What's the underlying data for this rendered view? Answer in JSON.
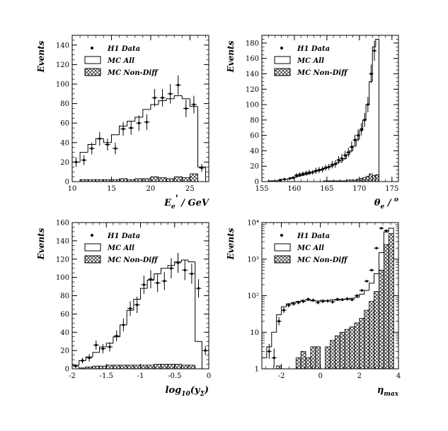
{
  "legend": {
    "data": "H1 Data",
    "mc_all": "MC All",
    "mc_nondiff": "MC Non-Diff"
  },
  "chart_data": [
    {
      "type": "bar",
      "ylabel": "Events",
      "xlabel": "E_e' / GeV",
      "xlim": [
        10,
        27.4
      ],
      "ylim": [
        0,
        150
      ],
      "xticks": [
        10,
        15,
        20,
        25
      ],
      "yticks": [
        0,
        20,
        40,
        60,
        80,
        100,
        120,
        140
      ],
      "bin_edges": [
        10,
        11,
        12,
        13,
        14,
        15,
        16,
        17,
        18,
        19,
        20,
        21,
        22,
        23,
        24,
        25,
        26,
        27
      ],
      "series": [
        {
          "name": "MC All",
          "values": [
            20,
            30,
            38,
            44,
            40,
            48,
            57,
            62,
            66,
            74,
            79,
            83,
            85,
            88,
            85,
            77,
            15
          ]
        },
        {
          "name": "MC Non-Diff",
          "values": [
            0,
            2,
            2,
            2,
            2,
            2,
            3,
            2,
            3,
            3,
            5,
            4,
            3,
            5,
            4,
            8,
            0
          ]
        },
        {
          "name": "H1 Data",
          "x": [
            10.5,
            11.5,
            12.5,
            13.5,
            14.5,
            15.5,
            16.5,
            17.5,
            18.5,
            19.5,
            20.5,
            21.5,
            22.5,
            23.5,
            24.5,
            25.5,
            26.5
          ],
          "y": [
            20,
            22,
            34,
            44,
            38,
            34,
            54,
            55,
            60,
            61,
            86,
            86,
            90,
            99,
            75,
            79,
            14
          ],
          "err": [
            5,
            5,
            6,
            7,
            6,
            6,
            7,
            7,
            8,
            8,
            9,
            9,
            10,
            10,
            9,
            9,
            4
          ]
        }
      ]
    },
    {
      "type": "bar",
      "ylabel": "Events",
      "xlabel": "θ_e / o",
      "xlim": [
        155,
        176
      ],
      "ylim": [
        0,
        190
      ],
      "xticks": [
        155,
        160,
        165,
        170,
        175
      ],
      "yticks": [
        0,
        20,
        40,
        60,
        80,
        100,
        120,
        140,
        160,
        180
      ],
      "bin_edges": [
        155,
        155.5,
        156,
        156.5,
        157,
        157.5,
        158,
        158.5,
        159,
        159.5,
        160,
        160.5,
        161,
        161.5,
        162,
        162.5,
        163,
        163.5,
        164,
        164.5,
        165,
        165.5,
        166,
        166.5,
        167,
        167.5,
        168,
        168.5,
        169,
        169.5,
        170,
        170.5,
        171,
        171.5,
        172,
        172.5,
        173
      ],
      "series": [
        {
          "name": "MC All",
          "values": [
            0,
            0,
            1,
            1,
            1,
            2,
            3,
            3,
            4,
            5,
            6,
            7,
            8,
            9,
            10,
            12,
            13,
            14,
            15,
            17,
            19,
            20,
            22,
            25,
            27,
            30,
            35,
            40,
            46,
            55,
            66,
            80,
            100,
            130,
            175,
            185
          ]
        },
        {
          "name": "MC Non-Diff",
          "values": [
            0,
            0,
            0,
            0,
            0,
            0,
            0,
            0,
            0,
            0,
            0,
            0,
            0,
            0,
            0,
            0,
            0,
            0,
            0,
            1,
            1,
            1,
            1,
            1,
            1,
            1,
            2,
            2,
            2,
            3,
            4,
            5,
            7,
            10,
            8,
            9
          ]
        },
        {
          "name": "H1 Data",
          "x": [
            157.8,
            158.5,
            159.3,
            159.8,
            160.3,
            160.8,
            161.3,
            161.8,
            162.3,
            162.8,
            163.3,
            163.8,
            164.3,
            164.8,
            165.3,
            165.8,
            166.3,
            166.8,
            167.3,
            167.8,
            168.3,
            168.8,
            169.3,
            169.8,
            170.3,
            170.8,
            171.3,
            171.8,
            172.3
          ],
          "y": [
            2,
            3,
            4,
            5,
            8,
            9,
            10,
            11,
            12,
            12,
            14,
            15,
            16,
            18,
            19,
            22,
            23,
            28,
            30,
            34,
            38,
            45,
            54,
            60,
            68,
            80,
            100,
            140,
            170
          ],
          "err": [
            1.5,
            2,
            2,
            2,
            3,
            3,
            3,
            3,
            3,
            3,
            4,
            4,
            4,
            4,
            4,
            5,
            5,
            5,
            6,
            6,
            6,
            7,
            7,
            8,
            8,
            9,
            10,
            12,
            13
          ]
        }
      ]
    },
    {
      "type": "bar",
      "ylabel": "Events",
      "xlabel": "log10(y_Σ)",
      "xlim": [
        -2,
        0
      ],
      "ylim": [
        0,
        160
      ],
      "xticks": [
        -2,
        -1.5,
        -1,
        -0.5,
        0
      ],
      "xtick_labels": [
        "-2",
        "-1.5",
        "-1",
        "-0.5",
        "0"
      ],
      "yticks": [
        0,
        20,
        40,
        60,
        80,
        100,
        120,
        140,
        160
      ],
      "bin_edges": [
        -2,
        -1.9,
        -1.8,
        -1.7,
        -1.6,
        -1.5,
        -1.4,
        -1.3,
        -1.2,
        -1.1,
        -1,
        -0.9,
        -0.8,
        -0.7,
        -0.6,
        -0.5,
        -0.4,
        -0.3,
        -0.2,
        -0.1
      ],
      "series": [
        {
          "name": "MC All",
          "values": [
            4,
            9,
            13,
            18,
            24,
            28,
            35,
            48,
            64,
            76,
            88,
            97,
            104,
            110,
            113,
            117,
            119,
            117,
            30
          ]
        },
        {
          "name": "MC Non-Diff",
          "values": [
            0,
            1,
            2,
            3,
            3,
            4,
            4,
            4,
            4,
            4,
            4,
            4,
            5,
            5,
            5,
            5,
            4,
            4,
            0
          ]
        },
        {
          "name": "H1 Data",
          "x": [
            -1.95,
            -1.85,
            -1.75,
            -1.65,
            -1.55,
            -1.45,
            -1.35,
            -1.25,
            -1.15,
            -1.05,
            -0.95,
            -0.85,
            -0.75,
            -0.65,
            -0.55,
            -0.45,
            -0.35,
            -0.25,
            -0.15,
            -0.05
          ],
          "y": [
            3,
            9,
            12,
            26,
            22,
            24,
            36,
            48,
            66,
            70,
            92,
            98,
            94,
            96,
            110,
            116,
            108,
            104,
            88,
            20
          ],
          "err": [
            2,
            3,
            4,
            5,
            5,
            5,
            6,
            7,
            8,
            9,
            10,
            10,
            10,
            10,
            11,
            11,
            11,
            11,
            10,
            5
          ]
        }
      ]
    },
    {
      "type": "bar",
      "ylabel": "Events",
      "xlabel": "η_max",
      "xscale": "linear",
      "yscale": "log",
      "xlim": [
        -3,
        4
      ],
      "ylim": [
        1,
        10000
      ],
      "xticks": [
        -2,
        0,
        2,
        4
      ],
      "yticks": [
        1,
        10,
        100,
        1000,
        10000
      ],
      "ytick_labels": [
        "1",
        "10",
        "10²",
        "10³",
        "10⁴"
      ],
      "bin_edges": [
        -3,
        -2.75,
        -2.5,
        -2.25,
        -2,
        -1.75,
        -1.5,
        -1.25,
        -1,
        -0.75,
        -0.5,
        -0.25,
        0,
        0.25,
        0.5,
        0.75,
        1,
        1.25,
        1.5,
        1.75,
        2,
        2.25,
        2.5,
        2.75,
        3,
        3.25,
        3.5,
        3.75
      ],
      "series": [
        {
          "name": "MC All",
          "values": [
            2,
            4,
            10,
            30,
            50,
            60,
            65,
            70,
            75,
            75,
            72,
            72,
            75,
            72,
            78,
            75,
            80,
            80,
            85,
            90,
            110,
            140,
            220,
            400,
            1500,
            5500,
            7000
          ]
        },
        {
          "name": "MC Non-Diff",
          "values": [
            0,
            0,
            0,
            1.2,
            0,
            0,
            0,
            2,
            3,
            2,
            4,
            4,
            1,
            4,
            6,
            8,
            10,
            12,
            14,
            18,
            24,
            40,
            70,
            130,
            500,
            2500,
            5000
          ]
        },
        {
          "name": "H1 Data",
          "x": [
            -2.625,
            -2.375,
            -2.125,
            -1.875,
            -1.625,
            -1.375,
            -1.125,
            -0.875,
            -0.625,
            -0.375,
            -0.125,
            0.125,
            0.375,
            0.625,
            0.875,
            1.125,
            1.375,
            1.625,
            1.875,
            2.125,
            2.375,
            2.625,
            2.875,
            3.125,
            3.375
          ],
          "y": [
            3,
            2,
            20,
            40,
            55,
            60,
            65,
            70,
            80,
            75,
            65,
            70,
            72,
            68,
            80,
            78,
            82,
            78,
            100,
            140,
            250,
            500,
            2000,
            7000,
            6000
          ],
          "err_factor": [
            1.6,
            1.8,
            1.3,
            1.2,
            1.15,
            1.13,
            1.12,
            1.12,
            1.11,
            1.11,
            1.12,
            1.12,
            1.11,
            1.12,
            1.11,
            1.11,
            1.11,
            1.11,
            1.1,
            1.08,
            1.06,
            1.05,
            1.03,
            1.02,
            1.02
          ]
        }
      ]
    }
  ]
}
